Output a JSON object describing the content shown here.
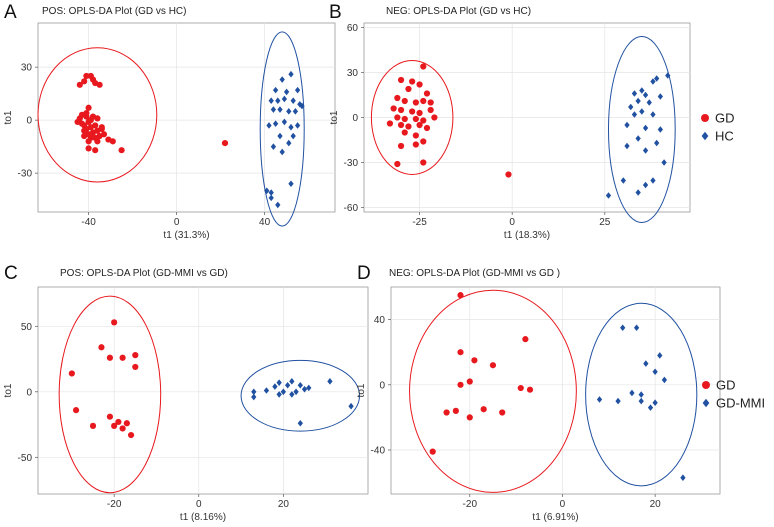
{
  "chart_data": [
    {
      "type": "scatter",
      "panel_label": "A",
      "title": "POS: OPLS-DA Plot (GD vs HC)",
      "xlabel": "t1 (31.3%)",
      "ylabel": "to1",
      "xlim": [
        -63,
        72
      ],
      "ylim": [
        -52,
        55
      ],
      "xticks": [
        -40,
        0,
        40
      ],
      "yticks": [
        -30,
        0,
        30
      ],
      "legend": null,
      "series": [
        {
          "name": "GD",
          "color": "#e8191e",
          "marker": "circle",
          "points": [
            [
              -44,
              20
            ],
            [
              -42,
              22
            ],
            [
              -41,
              25
            ],
            [
              -39,
              25
            ],
            [
              -38,
              23
            ],
            [
              -37,
              21
            ],
            [
              -35,
              20
            ],
            [
              -40,
              7
            ],
            [
              -41,
              4
            ],
            [
              -43,
              3
            ],
            [
              -44,
              1
            ],
            [
              -45,
              -1
            ],
            [
              -43,
              -2
            ],
            [
              -42,
              -3
            ],
            [
              -41,
              -5
            ],
            [
              -40,
              -1
            ],
            [
              -39,
              0
            ],
            [
              -38,
              2
            ],
            [
              -37,
              -3
            ],
            [
              -36,
              -6
            ],
            [
              -38,
              -7
            ],
            [
              -40,
              -8
            ],
            [
              -42,
              -9
            ],
            [
              -39,
              -10
            ],
            [
              -36,
              -12
            ],
            [
              -34,
              -4
            ],
            [
              -33,
              -8
            ],
            [
              -35,
              -9
            ],
            [
              -31,
              -11
            ],
            [
              -29,
              -12
            ],
            [
              -40,
              -12
            ],
            [
              -37,
              -10
            ],
            [
              -25,
              -17
            ],
            [
              -40,
              -16
            ],
            [
              -37,
              -17
            ],
            [
              -34,
              -5
            ],
            [
              -42,
              -6
            ],
            [
              -39,
              -4
            ],
            [
              -36,
              1
            ],
            [
              -41,
              2
            ],
            [
              22,
              -13
            ]
          ]
        },
        {
          "name": "HC",
          "color": "#2151a1",
          "marker": "diamond",
          "points": [
            [
              52,
              26
            ],
            [
              48,
              23
            ],
            [
              45,
              17
            ],
            [
              50,
              16
            ],
            [
              55,
              17
            ],
            [
              43,
              11
            ],
            [
              46,
              11
            ],
            [
              49,
              12
            ],
            [
              53,
              11
            ],
            [
              56,
              9
            ],
            [
              44,
              6
            ],
            [
              47,
              6
            ],
            [
              51,
              5
            ],
            [
              54,
              5
            ],
            [
              57,
              8
            ],
            [
              42,
              -3
            ],
            [
              45,
              -2
            ],
            [
              49,
              -1
            ],
            [
              52,
              -4
            ],
            [
              55,
              -3
            ],
            [
              47,
              -9
            ],
            [
              51,
              -13
            ],
            [
              53,
              -9
            ],
            [
              44,
              -15
            ],
            [
              48,
              -18
            ],
            [
              41,
              -40
            ],
            [
              43,
              -44
            ],
            [
              46,
              -48
            ],
            [
              52,
              -36
            ],
            [
              43,
              -41
            ]
          ]
        }
      ],
      "ellipses": [
        {
          "group": "GD",
          "color": "#e8191e",
          "cx": -36,
          "cy": 3,
          "rx": 27,
          "ry": 38,
          "rotation_deg": 0
        },
        {
          "group": "HC",
          "color": "#2151a1",
          "cx": 48,
          "cy": -5,
          "rx": 10,
          "ry": 55,
          "rotation_deg": 0
        }
      ]
    },
    {
      "type": "scatter",
      "panel_label": "B",
      "title": "NEG: OPLS-DA Plot (GD vs HC)",
      "xlabel": "t1 (18.3%)",
      "ylabel": "to1",
      "xlim": [
        -40,
        48
      ],
      "ylim": [
        -63,
        63
      ],
      "xticks": [
        -25,
        0,
        25
      ],
      "yticks": [
        60,
        30,
        0,
        -30,
        -60
      ],
      "legend": {
        "position": "right",
        "entries": [
          {
            "label": "GD",
            "color": "#e8191e",
            "marker": "circle"
          },
          {
            "label": "HC",
            "color": "#2151a1",
            "marker": "diamond"
          }
        ]
      },
      "series": [
        {
          "name": "GD",
          "color": "#e8191e",
          "marker": "circle",
          "points": [
            [
              -24,
              34
            ],
            [
              -30,
              25
            ],
            [
              -27,
              24
            ],
            [
              -25,
              22
            ],
            [
              -28,
              19
            ],
            [
              -23,
              16
            ],
            [
              -31,
              13
            ],
            [
              -29,
              11
            ],
            [
              -26,
              10
            ],
            [
              -24,
              11
            ],
            [
              -22,
              10
            ],
            [
              -32,
              6
            ],
            [
              -30,
              5
            ],
            [
              -27,
              4
            ],
            [
              -25,
              3
            ],
            [
              -22,
              5
            ],
            [
              -31,
              0
            ],
            [
              -29,
              -1
            ],
            [
              -26,
              -1
            ],
            [
              -24,
              -2
            ],
            [
              -21,
              0
            ],
            [
              -33,
              -4
            ],
            [
              -30,
              -5
            ],
            [
              -28,
              -6
            ],
            [
              -25,
              -5
            ],
            [
              -23,
              -7
            ],
            [
              -29,
              -10
            ],
            [
              -26,
              -12
            ],
            [
              -24,
              -16
            ],
            [
              -30,
              -19
            ],
            [
              -26,
              -18
            ],
            [
              -31,
              -31
            ],
            [
              -24,
              -30
            ],
            [
              -1,
              -38
            ]
          ]
        },
        {
          "name": "HC",
          "color": "#2151a1",
          "marker": "diamond",
          "points": [
            [
              42,
              28
            ],
            [
              39,
              26
            ],
            [
              38,
              24
            ],
            [
              35,
              18
            ],
            [
              33,
              16
            ],
            [
              36,
              15
            ],
            [
              40,
              14
            ],
            [
              34,
              11
            ],
            [
              37,
              10
            ],
            [
              32,
              7
            ],
            [
              35,
              4
            ],
            [
              38,
              2
            ],
            [
              33,
              2
            ],
            [
              31,
              -5
            ],
            [
              36,
              -7
            ],
            [
              40,
              -8
            ],
            [
              34,
              -14
            ],
            [
              39,
              -17
            ],
            [
              31,
              -19
            ],
            [
              36,
              -22
            ],
            [
              41,
              -30
            ],
            [
              30,
              -42
            ],
            [
              36,
              -45
            ],
            [
              38,
              -42
            ],
            [
              26,
              -52
            ],
            [
              34,
              -50
            ]
          ]
        }
      ],
      "ellipses": [
        {
          "group": "GD",
          "color": "#e8191e",
          "cx": -27,
          "cy": 0,
          "rx": 11,
          "ry": 38,
          "rotation_deg": 0
        },
        {
          "group": "HC",
          "color": "#2151a1",
          "cx": 35,
          "cy": -8,
          "rx": 9,
          "ry": 62,
          "rotation_deg": 0
        }
      ]
    },
    {
      "type": "scatter",
      "panel_label": "C",
      "title": "POS: OPLS-DA Plot (GD-MMI vs GD)",
      "xlabel": "t1 (8.16%)",
      "ylabel": "to1",
      "xlim": [
        -38,
        40
      ],
      "ylim": [
        -78,
        80
      ],
      "xticks": [
        -20,
        0,
        20
      ],
      "yticks": [
        50,
        0,
        -50
      ],
      "legend": null,
      "series": [
        {
          "name": "GD",
          "color": "#e8191e",
          "marker": "circle",
          "points": [
            [
              -20,
              53
            ],
            [
              -23,
              34
            ],
            [
              -21,
              26
            ],
            [
              -18,
              26
            ],
            [
              -15,
              28
            ],
            [
              -15,
              19
            ],
            [
              -30,
              14
            ],
            [
              -29,
              -14
            ],
            [
              -21,
              -19
            ],
            [
              -19,
              -23
            ],
            [
              -17,
              -24
            ],
            [
              -20,
              -26
            ],
            [
              -18,
              -28
            ],
            [
              -25,
              -26
            ],
            [
              -16,
              -33
            ]
          ]
        },
        {
          "name": "GD-MMI",
          "color": "#2151a1",
          "marker": "diamond",
          "points": [
            [
              13,
              0
            ],
            [
              13,
              -4
            ],
            [
              16,
              1
            ],
            [
              18,
              4
            ],
            [
              19,
              7
            ],
            [
              21,
              5
            ],
            [
              22,
              8
            ],
            [
              24,
              5
            ],
            [
              20,
              0
            ],
            [
              23,
              0
            ],
            [
              25,
              2
            ],
            [
              22,
              -2
            ],
            [
              19,
              -2
            ],
            [
              31,
              8
            ],
            [
              36,
              -11
            ],
            [
              24,
              -24
            ],
            [
              26,
              3
            ]
          ]
        }
      ],
      "ellipses": [
        {
          "group": "GD",
          "color": "#e8191e",
          "cx": -21,
          "cy": -2,
          "rx": 12,
          "ry": 75,
          "rotation_deg": 0
        },
        {
          "group": "GD-MMI",
          "color": "#2151a1",
          "cx": 24,
          "cy": -3,
          "rx": 14,
          "ry": 27,
          "rotation_deg": 0
        }
      ]
    },
    {
      "type": "scatter",
      "panel_label": "D",
      "title": "NEG: OPLS-DA Plot (GD-MMI vs GD )",
      "xlabel": "t1 (6.91%)",
      "ylabel": "to1",
      "xlim": [
        -37,
        34
      ],
      "ylim": [
        -67,
        60
      ],
      "xticks": [
        -20,
        0,
        20
      ],
      "yticks": [
        40,
        0,
        -40
      ],
      "legend": {
        "position": "right",
        "entries": [
          {
            "label": "GD",
            "color": "#e8191e",
            "marker": "circle"
          },
          {
            "label": "GD-MMI",
            "color": "#2151a1",
            "marker": "diamond"
          }
        ]
      },
      "series": [
        {
          "name": "GD",
          "color": "#e8191e",
          "marker": "circle",
          "points": [
            [
              -22,
              55
            ],
            [
              -8,
              28
            ],
            [
              -22,
              20
            ],
            [
              -19,
              15
            ],
            [
              -15,
              12
            ],
            [
              -20,
              2
            ],
            [
              -22,
              0
            ],
            [
              -9,
              -2
            ],
            [
              -7,
              -3
            ],
            [
              -25,
              -17
            ],
            [
              -23,
              -16
            ],
            [
              -17,
              -15
            ],
            [
              -13,
              -17
            ],
            [
              -20,
              -20
            ],
            [
              -28,
              -41
            ]
          ]
        },
        {
          "name": "GD-MMI",
          "color": "#2151a1",
          "marker": "diamond",
          "points": [
            [
              13,
              35
            ],
            [
              16,
              35
            ],
            [
              21,
              18
            ],
            [
              18,
              13
            ],
            [
              20,
              8
            ],
            [
              22,
              3
            ],
            [
              15,
              -5
            ],
            [
              17,
              -6
            ],
            [
              12,
              -10
            ],
            [
              17,
              -10
            ],
            [
              19,
              -14
            ],
            [
              20,
              -11
            ],
            [
              8,
              -9
            ],
            [
              26,
              -57
            ]
          ]
        }
      ],
      "ellipses": [
        {
          "group": "GD",
          "color": "#e8191e",
          "cx": -15,
          "cy": -4,
          "rx": 18,
          "ry": 62,
          "rotation_deg": 0
        },
        {
          "group": "GD-MMI",
          "color": "#2151a1",
          "cx": 17,
          "cy": -6,
          "rx": 12,
          "ry": 56,
          "rotation_deg": 0
        }
      ]
    }
  ]
}
